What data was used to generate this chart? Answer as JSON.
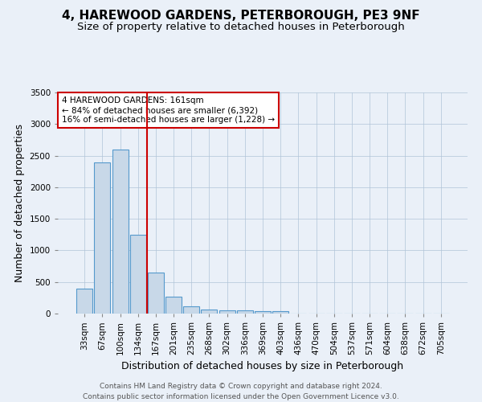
{
  "title": "4, HAREWOOD GARDENS, PETERBOROUGH, PE3 9NF",
  "subtitle": "Size of property relative to detached houses in Peterborough",
  "xlabel": "Distribution of detached houses by size in Peterborough",
  "ylabel": "Number of detached properties",
  "categories": [
    "33sqm",
    "67sqm",
    "100sqm",
    "134sqm",
    "167sqm",
    "201sqm",
    "235sqm",
    "268sqm",
    "302sqm",
    "336sqm",
    "369sqm",
    "403sqm",
    "436sqm",
    "470sqm",
    "504sqm",
    "537sqm",
    "571sqm",
    "604sqm",
    "638sqm",
    "672sqm",
    "705sqm"
  ],
  "values": [
    400,
    2390,
    2590,
    1250,
    650,
    265,
    115,
    65,
    55,
    50,
    35,
    35,
    0,
    0,
    0,
    0,
    0,
    0,
    0,
    0,
    0
  ],
  "bar_color": "#c8d8e8",
  "bar_edge_color": "#5599cc",
  "vline_color": "#cc0000",
  "annotation_text": "4 HAREWOOD GARDENS: 161sqm\n← 84% of detached houses are smaller (6,392)\n16% of semi-detached houses are larger (1,228) →",
  "annotation_box_color": "#ffffff",
  "annotation_box_edge_color": "#cc0000",
  "ylim": [
    0,
    3500
  ],
  "yticks": [
    0,
    500,
    1000,
    1500,
    2000,
    2500,
    3000,
    3500
  ],
  "background_color": "#eaf0f8",
  "plot_background_color": "#eaf0f8",
  "footer_line1": "Contains HM Land Registry data © Crown copyright and database right 2024.",
  "footer_line2": "Contains public sector information licensed under the Open Government Licence v3.0.",
  "title_fontsize": 11,
  "subtitle_fontsize": 9.5,
  "axis_label_fontsize": 9,
  "tick_fontsize": 7.5,
  "annotation_fontsize": 7.5,
  "footer_fontsize": 6.5
}
